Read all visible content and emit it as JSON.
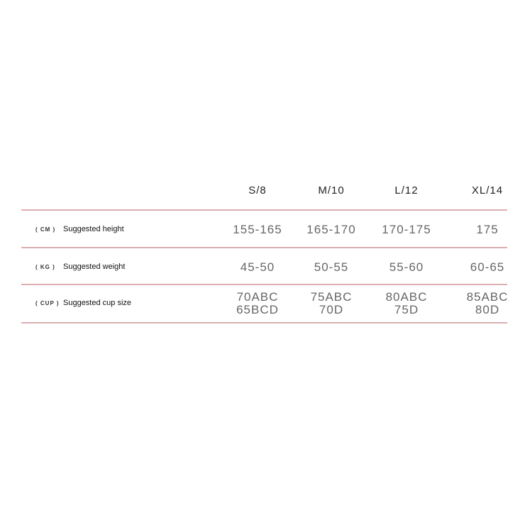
{
  "columns": [
    "S/8",
    "M/10",
    "L/12",
    "XL/14"
  ],
  "rows": [
    {
      "unit": "( CM )",
      "label": "Suggested height",
      "values": [
        [
          "155-165"
        ],
        [
          "165-170"
        ],
        [
          "170-175"
        ],
        [
          "175"
        ]
      ]
    },
    {
      "unit": "( KG )",
      "label": "Suggested weight",
      "values": [
        [
          "45-50"
        ],
        [
          "50-55"
        ],
        [
          "55-60"
        ],
        [
          "60-65"
        ]
      ]
    },
    {
      "unit": "( CUP )",
      "label": "Suggested cup size",
      "values": [
        [
          "70ABC",
          "65BCD"
        ],
        [
          "75ABC",
          "70D"
        ],
        [
          "80ABC",
          "75D"
        ],
        [
          "85ABC",
          "80D"
        ]
      ]
    }
  ],
  "colors": {
    "divider": "#dcaeb0"
  }
}
